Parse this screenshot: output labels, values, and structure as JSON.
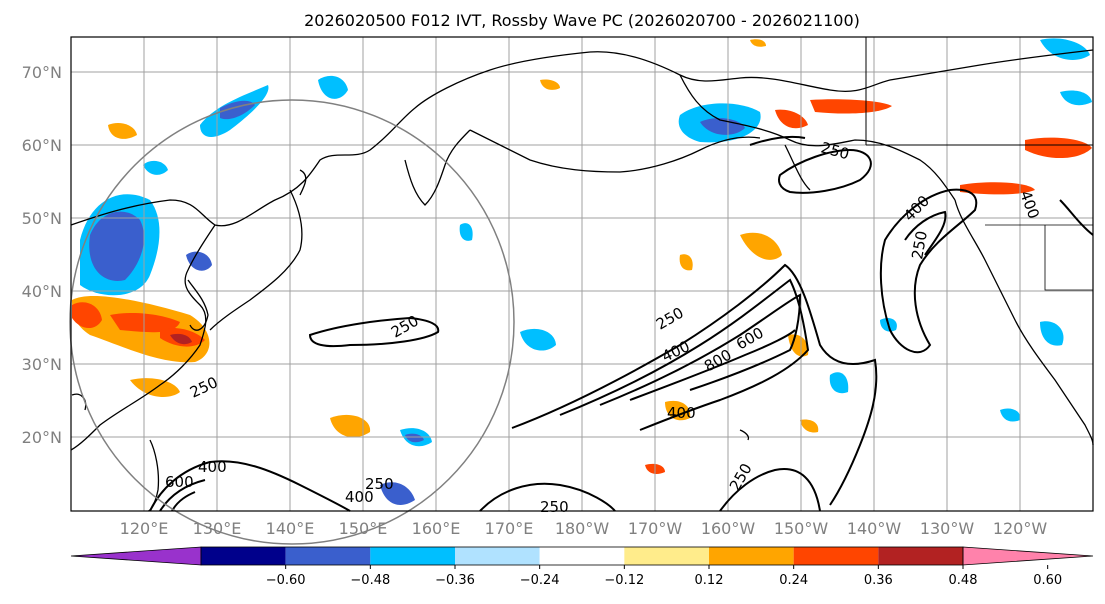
{
  "title": "2026020500 F012 IVT, Rossby Wave PC (2026020700 - 2026021100)",
  "map": {
    "lat_labels": [
      "70°N",
      "60°N",
      "50°N",
      "40°N",
      "30°N",
      "20°N"
    ],
    "lon_labels": [
      "120°E",
      "130°E",
      "140°E",
      "150°E",
      "160°E",
      "170°E",
      "180°W",
      "170°W",
      "160°W",
      "150°W",
      "140°W",
      "130°W",
      "120°W"
    ],
    "extent": {
      "lon_min": 110,
      "lon_max": 250,
      "lat_min": 10,
      "lat_max": 75
    },
    "gridline_color": "#a0a0a0",
    "coast_color": "#000000"
  },
  "contour_labels": [
    "250",
    "400",
    "600",
    "800",
    "250",
    "400",
    "250",
    "400",
    "250",
    "400",
    "250",
    "400",
    "600",
    "250",
    "400",
    "250",
    "250"
  ],
  "colorbar": {
    "colors": [
      "#9932cc",
      "#00008b",
      "#3a5fcd",
      "#00bfff",
      "#b0e2ff",
      "#ffffff",
      "#ffec8b",
      "#ffa500",
      "#ff4500",
      "#b22222",
      "#ff82ab"
    ],
    "tick_labels": [
      "−0.60",
      "−0.48",
      "−0.36",
      "−0.24",
      "−0.12",
      "0.12",
      "0.24",
      "0.36",
      "0.48",
      "0.60"
    ],
    "extend": "both"
  }
}
